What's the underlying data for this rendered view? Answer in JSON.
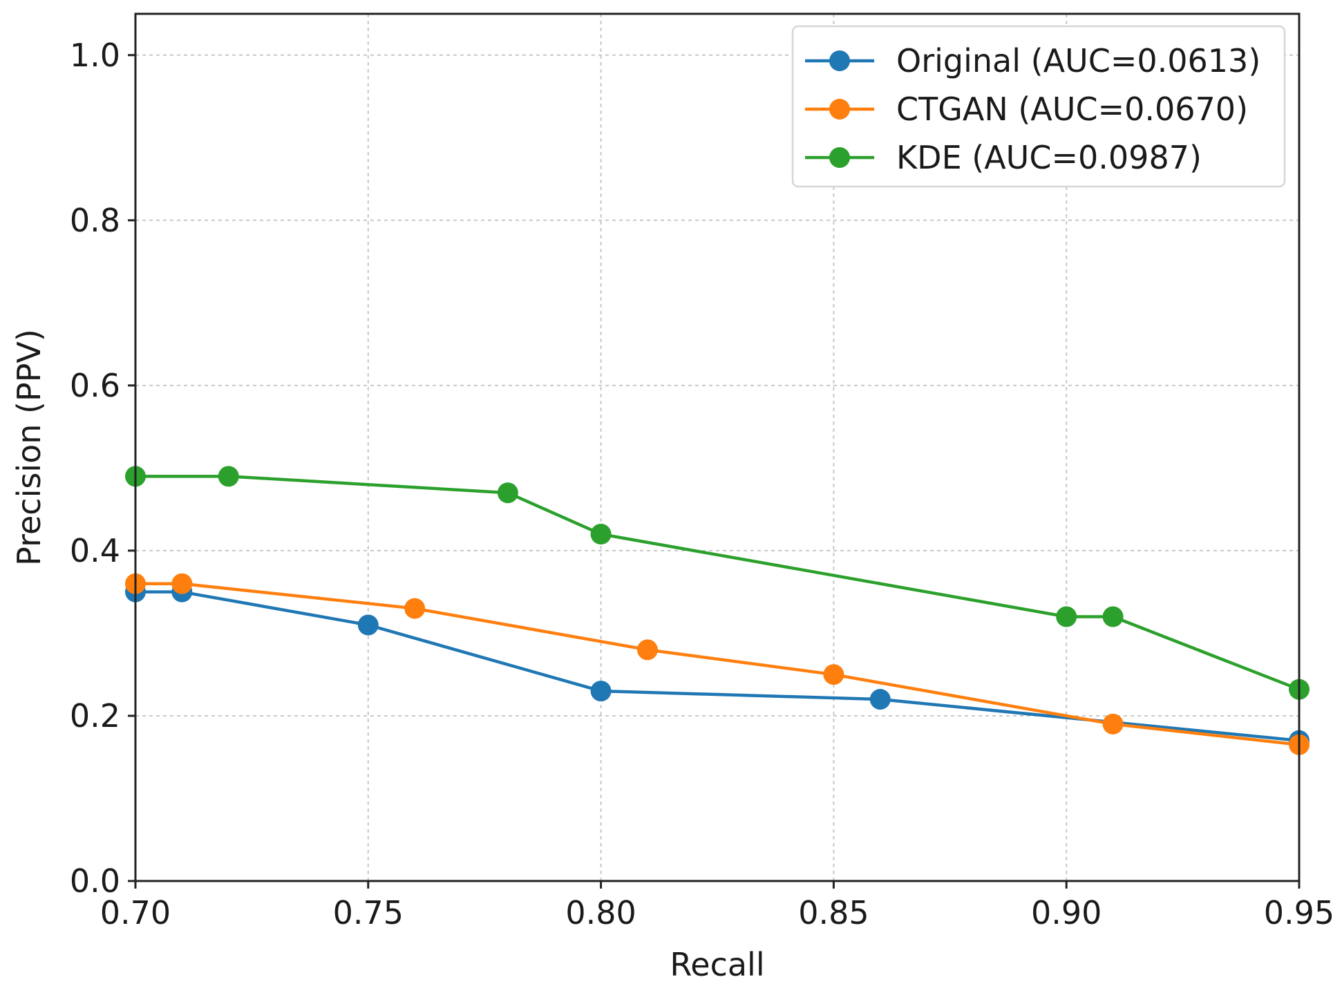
{
  "chart_data": {
    "type": "line",
    "title": "",
    "xlabel": "Recall",
    "ylabel": "Precision (PPV)",
    "xlim": [
      0.7,
      0.95
    ],
    "ylim": [
      0.0,
      1.05
    ],
    "xticks": [
      0.7,
      0.75,
      0.8,
      0.85,
      0.9,
      0.95
    ],
    "xtick_labels": [
      "0.70",
      "0.75",
      "0.80",
      "0.85",
      "0.90",
      "0.95"
    ],
    "yticks": [
      0.0,
      0.2,
      0.4,
      0.6,
      0.8,
      1.0
    ],
    "ytick_labels": [
      "0.0",
      "0.2",
      "0.4",
      "0.6",
      "0.8",
      "1.0"
    ],
    "grid": true,
    "legend_position": "top-right",
    "series": [
      {
        "name": "Original (AUC=0.0613)",
        "color": "#1f77b4",
        "x": [
          0.7,
          0.71,
          0.75,
          0.8,
          0.86,
          0.95
        ],
        "y": [
          0.35,
          0.35,
          0.31,
          0.23,
          0.22,
          0.17
        ]
      },
      {
        "name": "CTGAN (AUC=0.0670)",
        "color": "#ff7f0e",
        "x": [
          0.7,
          0.71,
          0.76,
          0.81,
          0.85,
          0.91,
          0.95
        ],
        "y": [
          0.36,
          0.36,
          0.33,
          0.28,
          0.25,
          0.19,
          0.165
        ]
      },
      {
        "name": "KDE (AUC=0.0987)",
        "color": "#2ca02c",
        "x": [
          0.7,
          0.72,
          0.78,
          0.8,
          0.9,
          0.91,
          0.95
        ],
        "y": [
          0.49,
          0.49,
          0.47,
          0.42,
          0.32,
          0.32,
          0.232
        ]
      }
    ]
  }
}
